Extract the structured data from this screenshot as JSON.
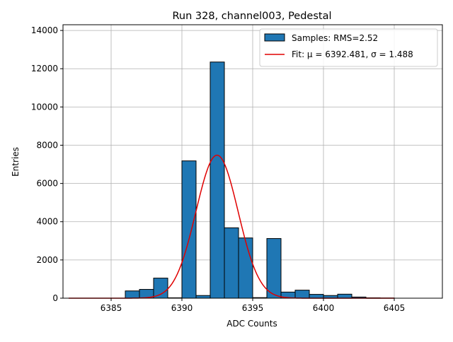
{
  "chart_data": {
    "type": "bar",
    "title": "Run 328, channel003, Pedestal",
    "xlabel": "ADC Counts",
    "ylabel": "Entries",
    "xlim": [
      6381.6,
      6408.4
    ],
    "ylim": [
      0,
      14300
    ],
    "xticks": [
      6385,
      6390,
      6395,
      6400,
      6405
    ],
    "yticks": [
      0,
      2000,
      4000,
      6000,
      8000,
      10000,
      12000,
      14000
    ],
    "grid": true,
    "legend_position": "top-right",
    "bin_width": 1,
    "histogram": {
      "name": "Samples: RMS=2.52",
      "color": "#1f77b4",
      "bins": [
        {
          "left": 6386,
          "count": 380
        },
        {
          "left": 6387,
          "count": 460
        },
        {
          "left": 6388,
          "count": 1050
        },
        {
          "left": 6389,
          "count": 20
        },
        {
          "left": 6390,
          "count": 7180
        },
        {
          "left": 6391,
          "count": 140
        },
        {
          "left": 6392,
          "count": 12350
        },
        {
          "left": 6393,
          "count": 3680
        },
        {
          "left": 6394,
          "count": 3150
        },
        {
          "left": 6395,
          "count": 30
        },
        {
          "left": 6396,
          "count": 3120
        },
        {
          "left": 6397,
          "count": 320
        },
        {
          "left": 6398,
          "count": 420
        },
        {
          "left": 6399,
          "count": 200
        },
        {
          "left": 6400,
          "count": 140
        },
        {
          "left": 6401,
          "count": 210
        },
        {
          "left": 6402,
          "count": 60
        },
        {
          "left": 6403,
          "count": 20
        },
        {
          "left": 6404,
          "count": 10
        }
      ]
    },
    "fit": {
      "name": "Fit: μ = 6392.481, σ = 1.488",
      "color": "#e00000",
      "function": "gaussian",
      "mu": 6392.481,
      "sigma": 1.488,
      "amplitude": 7480,
      "x_range": [
        6382,
        6405
      ]
    }
  }
}
